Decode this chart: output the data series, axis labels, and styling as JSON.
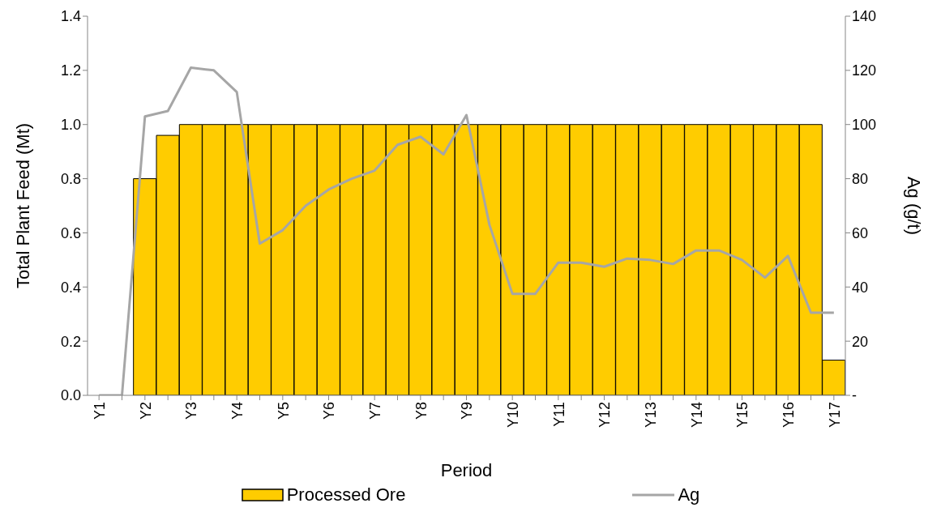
{
  "chart_data": {
    "type": "bar",
    "xlabel": "Period",
    "ylabel": "Total Plant Feed (Mt)",
    "y2label": "Ag (g/t)",
    "categories": [
      "Y1",
      null,
      "Y2",
      null,
      "Y3",
      null,
      "Y4",
      null,
      "Y5",
      null,
      "Y6",
      null,
      "Y7",
      null,
      "Y8",
      null,
      "Y9",
      null,
      "Y10",
      null,
      "Y11",
      null,
      "Y12",
      null,
      "Y13",
      null,
      "Y14",
      null,
      "Y15",
      null,
      "Y16",
      null,
      "Y17"
    ],
    "series": [
      {
        "name": "Processed Ore",
        "color": "#ffcc00",
        "values": [
          0,
          0,
          0.8,
          0.96,
          1.0,
          1.0,
          1.0,
          1.0,
          1.0,
          1.0,
          1.0,
          1.0,
          1.0,
          1.0,
          1.0,
          1.0,
          1.0,
          1.0,
          1.0,
          1.0,
          1.0,
          1.0,
          1.0,
          1.0,
          1.0,
          1.0,
          1.0,
          1.0,
          1.0,
          1.0,
          1.0,
          1.0,
          0.13
        ]
      },
      {
        "name": "Ag",
        "type": "line",
        "axis": "y2",
        "color": "#a6a6a6",
        "values": [
          0,
          0,
          103,
          105,
          121,
          120,
          112,
          56,
          61,
          70,
          76,
          80,
          83,
          92.5,
          95.5,
          89,
          103.5,
          63,
          37.5,
          37.5,
          49,
          49,
          47.5,
          50.5,
          50,
          48.5,
          53.5,
          53.5,
          50,
          43.5,
          51.5,
          30.5,
          30.5
        ]
      }
    ],
    "ylim": [
      0,
      1.4
    ],
    "yticks": [
      {
        "value": 0,
        "label": "0.0"
      },
      {
        "value": 0.2,
        "label": "0.2"
      },
      {
        "value": 0.4,
        "label": "0.4"
      },
      {
        "value": 0.6,
        "label": "0.6"
      },
      {
        "value": 0.8,
        "label": "0.8"
      },
      {
        "value": 1,
        "label": "1.0"
      },
      {
        "value": 1.2,
        "label": "1.2"
      },
      {
        "value": 1.4,
        "label": "1.4"
      }
    ],
    "y2lim": [
      0,
      140
    ],
    "y2ticks": [
      {
        "value": 0,
        "label": "-"
      },
      20,
      40,
      60,
      80,
      100,
      120,
      140
    ],
    "grid": false,
    "legend": "bottom",
    "marker": "none"
  }
}
